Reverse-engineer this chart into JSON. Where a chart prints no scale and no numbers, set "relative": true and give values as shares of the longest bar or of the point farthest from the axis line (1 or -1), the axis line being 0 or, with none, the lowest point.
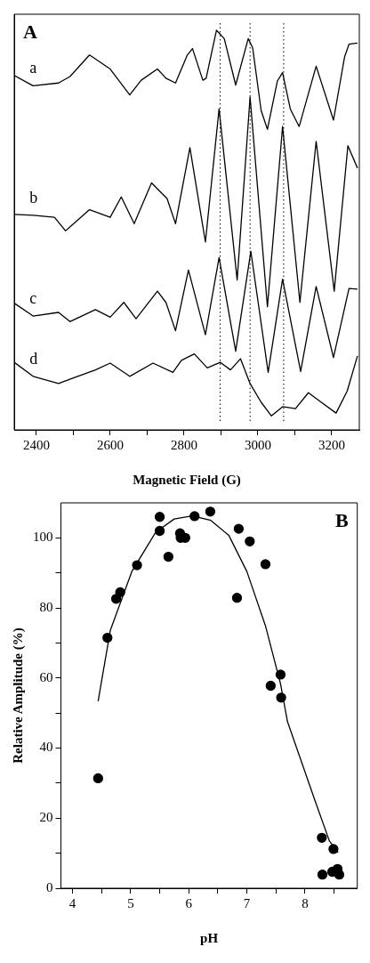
{
  "chart_data": [
    {
      "type": "line",
      "relative": true,
      "xlabel": "Magnetic Field (G)",
      "annotations": [
        "A"
      ],
      "xlim": [
        2340,
        3275
      ],
      "xticks": [
        2400,
        {
          "value": 2500,
          "label": null
        },
        2600,
        {
          "value": 2700,
          "label": null
        },
        2800,
        {
          "value": 2900,
          "label": null
        },
        3000,
        {
          "value": 3100,
          "label": null
        },
        3200
      ],
      "grid": false,
      "legend": false,
      "marker": "none",
      "line_style": "solid",
      "ref_lines": [
        {
          "axis": "x",
          "value": 2898,
          "line_style": "dotted",
          "color": "#000000"
        },
        {
          "axis": "x",
          "value": 2979,
          "line_style": "dotted",
          "color": "#000000"
        },
        {
          "axis": "x",
          "value": 3070,
          "line_style": "dotted",
          "color": "#000000"
        }
      ],
      "series": [
        {
          "name": "a",
          "color": "#000000",
          "x": [
            2340,
            2391,
            2460,
            2491,
            2544,
            2600,
            2653,
            2684,
            2728,
            2751,
            2777,
            2809,
            2823,
            2851,
            2860,
            2888,
            2909,
            2940,
            2974,
            2986,
            3009,
            3026,
            3053,
            3067,
            3088,
            3112,
            3158,
            3205,
            3235,
            3247,
            3270
          ],
          "values": [
            0.887,
            0.861,
            0.868,
            0.884,
            0.938,
            0.903,
            0.838,
            0.875,
            0.903,
            0.88,
            0.868,
            0.938,
            0.954,
            0.875,
            0.88,
            1.0,
            0.979,
            0.863,
            0.979,
            0.956,
            0.799,
            0.752,
            0.873,
            0.894,
            0.803,
            0.759,
            0.91,
            0.775,
            0.933,
            0.965,
            0.968
          ]
        },
        {
          "name": "b",
          "color": "#000000",
          "x": [
            2340,
            2391,
            2449,
            2479,
            2544,
            2600,
            2630,
            2665,
            2712,
            2754,
            2777,
            2816,
            2858,
            2895,
            2944,
            2979,
            3026,
            3067,
            3114,
            3158,
            3207,
            3244,
            3270
          ],
          "values": [
            0.539,
            0.537,
            0.532,
            0.498,
            0.551,
            0.532,
            0.583,
            0.516,
            0.618,
            0.579,
            0.516,
            0.706,
            0.47,
            0.803,
            0.375,
            0.833,
            0.308,
            0.759,
            0.319,
            0.722,
            0.347,
            0.711,
            0.655
          ]
        },
        {
          "name": "c",
          "color": "#000000",
          "x": [
            2340,
            2391,
            2460,
            2491,
            2560,
            2600,
            2637,
            2670,
            2728,
            2751,
            2777,
            2812,
            2858,
            2895,
            2940,
            2981,
            3028,
            3067,
            3116,
            3158,
            3205,
            3247,
            3270
          ],
          "values": [
            0.317,
            0.285,
            0.294,
            0.271,
            0.301,
            0.282,
            0.319,
            0.278,
            0.347,
            0.319,
            0.248,
            0.4,
            0.238,
            0.431,
            0.197,
            0.447,
            0.144,
            0.377,
            0.146,
            0.359,
            0.181,
            0.354,
            0.352
          ]
        },
        {
          "name": "d",
          "color": "#000000",
          "x": [
            2340,
            2391,
            2460,
            2507,
            2560,
            2600,
            2653,
            2716,
            2770,
            2793,
            2828,
            2863,
            2898,
            2926,
            2953,
            2979,
            3009,
            3037,
            3067,
            3102,
            3137,
            3172,
            3212,
            3242,
            3270
          ],
          "values": [
            0.169,
            0.134,
            0.116,
            0.132,
            0.15,
            0.167,
            0.134,
            0.167,
            0.144,
            0.174,
            0.19,
            0.155,
            0.169,
            0.15,
            0.178,
            0.116,
            0.069,
            0.035,
            0.058,
            0.053,
            0.093,
            0.069,
            0.042,
            0.097,
            0.185
          ]
        }
      ]
    },
    {
      "type": "scatter",
      "xlabel": "pH",
      "ylabel": "Relative Amplitude (%)",
      "annotations": [
        "B"
      ],
      "xlim": [
        3.8,
        8.9
      ],
      "xticks": [
        4,
        {
          "value": 4.5,
          "label": null
        },
        5,
        {
          "value": 5.5,
          "label": null
        },
        6,
        {
          "value": 6.5,
          "label": null
        },
        7,
        {
          "value": 7.5,
          "label": null
        },
        8,
        {
          "value": 8.5,
          "label": null
        }
      ],
      "ylim": [
        0,
        110
      ],
      "yticks": [
        0,
        {
          "value": 10,
          "label": null
        },
        20,
        {
          "value": 30,
          "label": null
        },
        40,
        {
          "value": 50,
          "label": null
        },
        60,
        {
          "value": 70,
          "label": null
        },
        80,
        {
          "value": 90,
          "label": null
        },
        100
      ],
      "grid": false,
      "legend": false,
      "series": [
        {
          "type": "line",
          "color": "#000000",
          "marker": "none",
          "line_style": "solid",
          "x": [
            4.44,
            4.65,
            5.02,
            5.43,
            5.75,
            6.06,
            6.38,
            6.69,
            7.0,
            7.32,
            7.58,
            7.7,
            7.9,
            8.16,
            8.42,
            8.57
          ],
          "values": [
            53.4,
            73.6,
            90.4,
            101.6,
            105.4,
            106.3,
            105,
            100.7,
            90.4,
            74.9,
            58.3,
            47.5,
            38,
            25.6,
            13.5,
            10.2
          ]
        },
        {
          "type": "scatter",
          "color": "#000000",
          "marker": "circle",
          "x": [
            4.44,
            4.6,
            4.75,
            4.82,
            5.11,
            5.5,
            5.5,
            5.65,
            5.85,
            5.86,
            5.94,
            6.1,
            6.37,
            6.86,
            6.83,
            7.05,
            7.32,
            7.41,
            7.58,
            7.59,
            8.29,
            8.3,
            8.49,
            8.47,
            8.56,
            8.59
          ],
          "values": [
            31.4,
            71.5,
            82.6,
            84.5,
            92.2,
            106,
            102,
            94.6,
            101.3,
            100,
            100,
            106.2,
            107.5,
            102.6,
            82.9,
            99,
            92.5,
            57.8,
            61,
            54.4,
            14.4,
            3.9,
            11.2,
            4.7,
            5.5,
            3.9
          ]
        }
      ]
    }
  ]
}
